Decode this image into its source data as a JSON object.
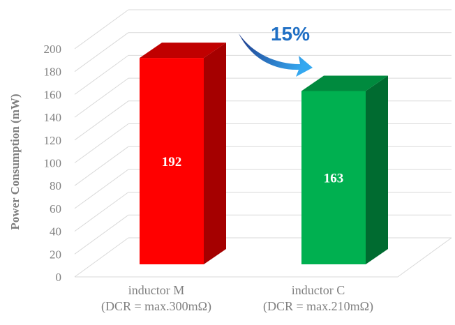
{
  "chart_data": {
    "type": "bar",
    "categories": [
      [
        "inductor M",
        "(DCR = max.300mΩ)"
      ],
      [
        "inductor C",
        "(DCR = max.210mΩ)"
      ]
    ],
    "values": [
      192,
      163
    ],
    "data_labels": [
      "192",
      "163"
    ],
    "ylabel": "Power Consumption (mW)",
    "ylim": [
      0,
      200
    ],
    "yticks": [
      "0",
      "20",
      "40",
      "60",
      "80",
      "100",
      "120",
      "140",
      "160",
      "180",
      "200"
    ],
    "grid": true,
    "style": "3d-column",
    "bar_colors": [
      {
        "front": "#ff0000",
        "side": "#a50000",
        "top": "#c00000"
      },
      {
        "front": "#00b050",
        "side": "#006b30",
        "top": "#008a3e"
      }
    ],
    "annotation": {
      "text": "15%",
      "color": "#1f6fc4",
      "arrow_color_start": "#1f3a8a",
      "arrow_color_end": "#35a8f0"
    }
  }
}
